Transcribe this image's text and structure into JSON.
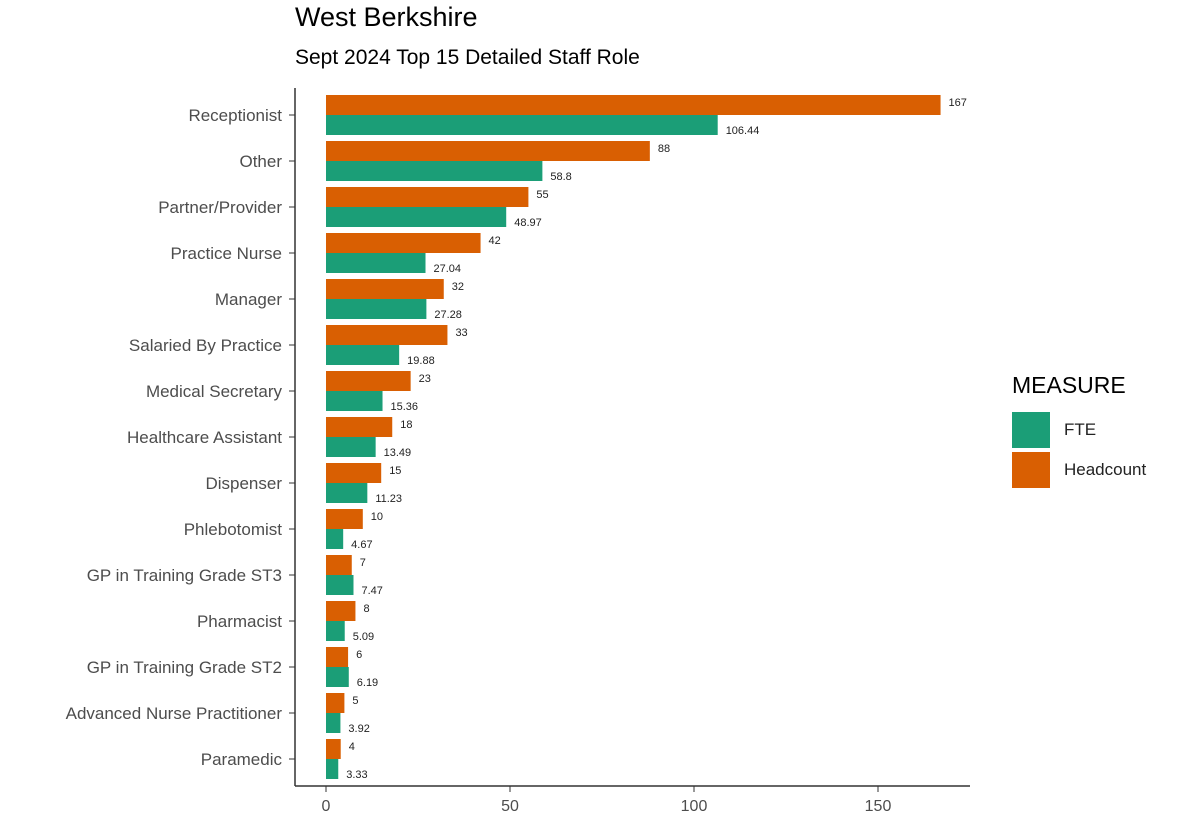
{
  "chart_data": {
    "type": "bar",
    "orientation": "horizontal",
    "title": "West Berkshire",
    "subtitle": "Sept 2024 Top 15 Detailed Staff Role",
    "categories": [
      "Receptionist",
      "Other",
      "Partner/Provider",
      "Practice Nurse",
      "Manager",
      "Salaried By Practice",
      "Medical Secretary",
      "Healthcare Assistant",
      "Dispenser",
      "Phlebotomist",
      "GP in Training Grade ST3",
      "Pharmacist",
      "GP in Training Grade ST2",
      "Advanced Nurse Practitioner",
      "Paramedic"
    ],
    "series": [
      {
        "name": "Headcount",
        "color": "#d95f02",
        "values": [
          167,
          88,
          55,
          42,
          32,
          33,
          23,
          18,
          15,
          10,
          7,
          8,
          6,
          5,
          4
        ],
        "labels": [
          "167",
          "88",
          "55",
          "42",
          "32",
          "33",
          "23",
          "18",
          "15",
          "10",
          "7",
          "8",
          "6",
          "5",
          "4"
        ]
      },
      {
        "name": "FTE",
        "color": "#1b9e77",
        "values": [
          106.44,
          58.8,
          48.97,
          27.04,
          27.28,
          19.88,
          15.36,
          13.49,
          11.23,
          4.67,
          7.47,
          5.09,
          6.19,
          3.92,
          3.33
        ],
        "labels": [
          "106.44",
          "58.8",
          "48.97",
          "27.04",
          "27.28",
          "19.88",
          "15.36",
          "13.49",
          "11.23",
          "4.67",
          "7.47",
          "5.09",
          "6.19",
          "3.92",
          "3.33"
        ]
      }
    ],
    "xticks": [
      0,
      50,
      100,
      150
    ],
    "xlim": [
      -8,
      175
    ],
    "grid": false,
    "legend": {
      "title": "MEASURE",
      "position": "right",
      "entries": [
        {
          "name": "FTE",
          "color": "#1b9e77"
        },
        {
          "name": "Headcount",
          "color": "#d95f02"
        }
      ]
    }
  }
}
